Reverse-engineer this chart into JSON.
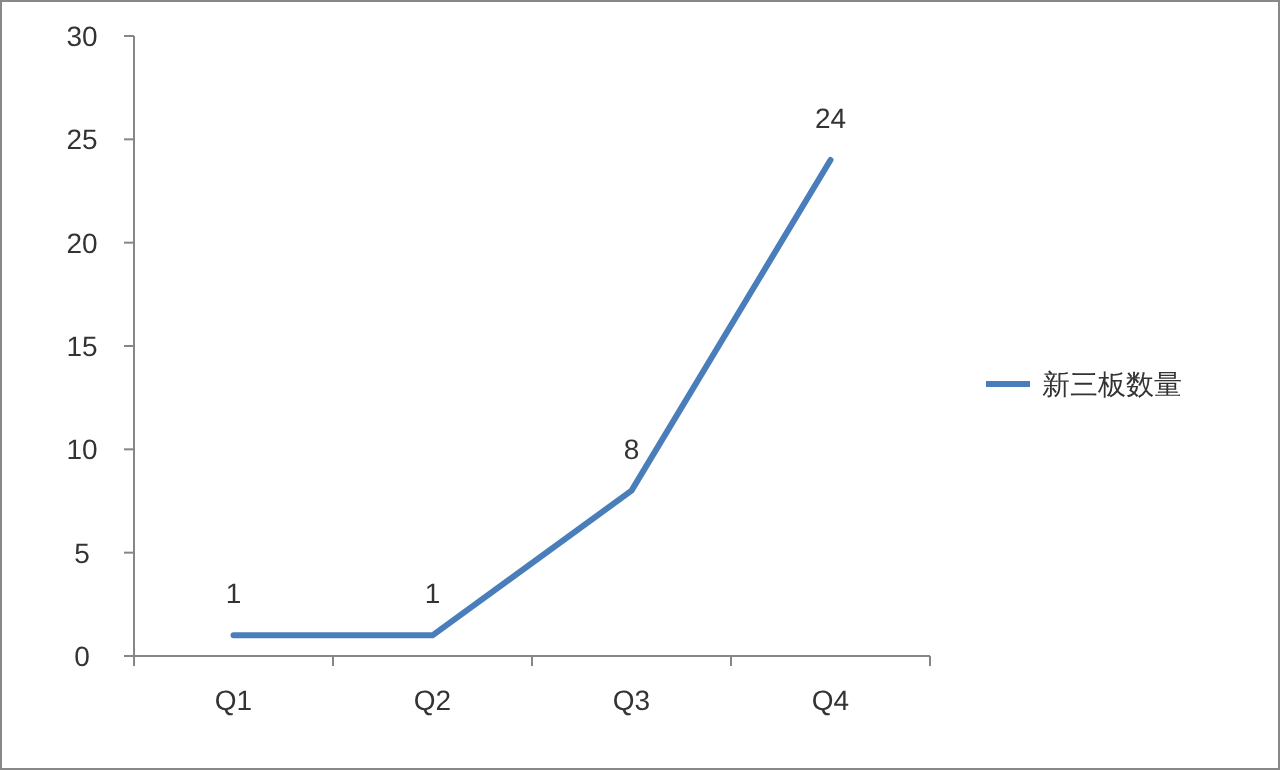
{
  "chart_data": {
    "type": "line",
    "categories": [
      "Q1",
      "Q2",
      "Q3",
      "Q4"
    ],
    "series": [
      {
        "name": "新三板数量",
        "color": "#4a7ebb",
        "values": [
          1,
          1,
          8,
          24
        ]
      }
    ],
    "ylim": [
      0,
      30
    ],
    "yticks": [
      0,
      5,
      10,
      15,
      20,
      25,
      30
    ],
    "data_labels": true,
    "legend": "right",
    "grid": false,
    "marker": "none",
    "line_style": "solid"
  }
}
